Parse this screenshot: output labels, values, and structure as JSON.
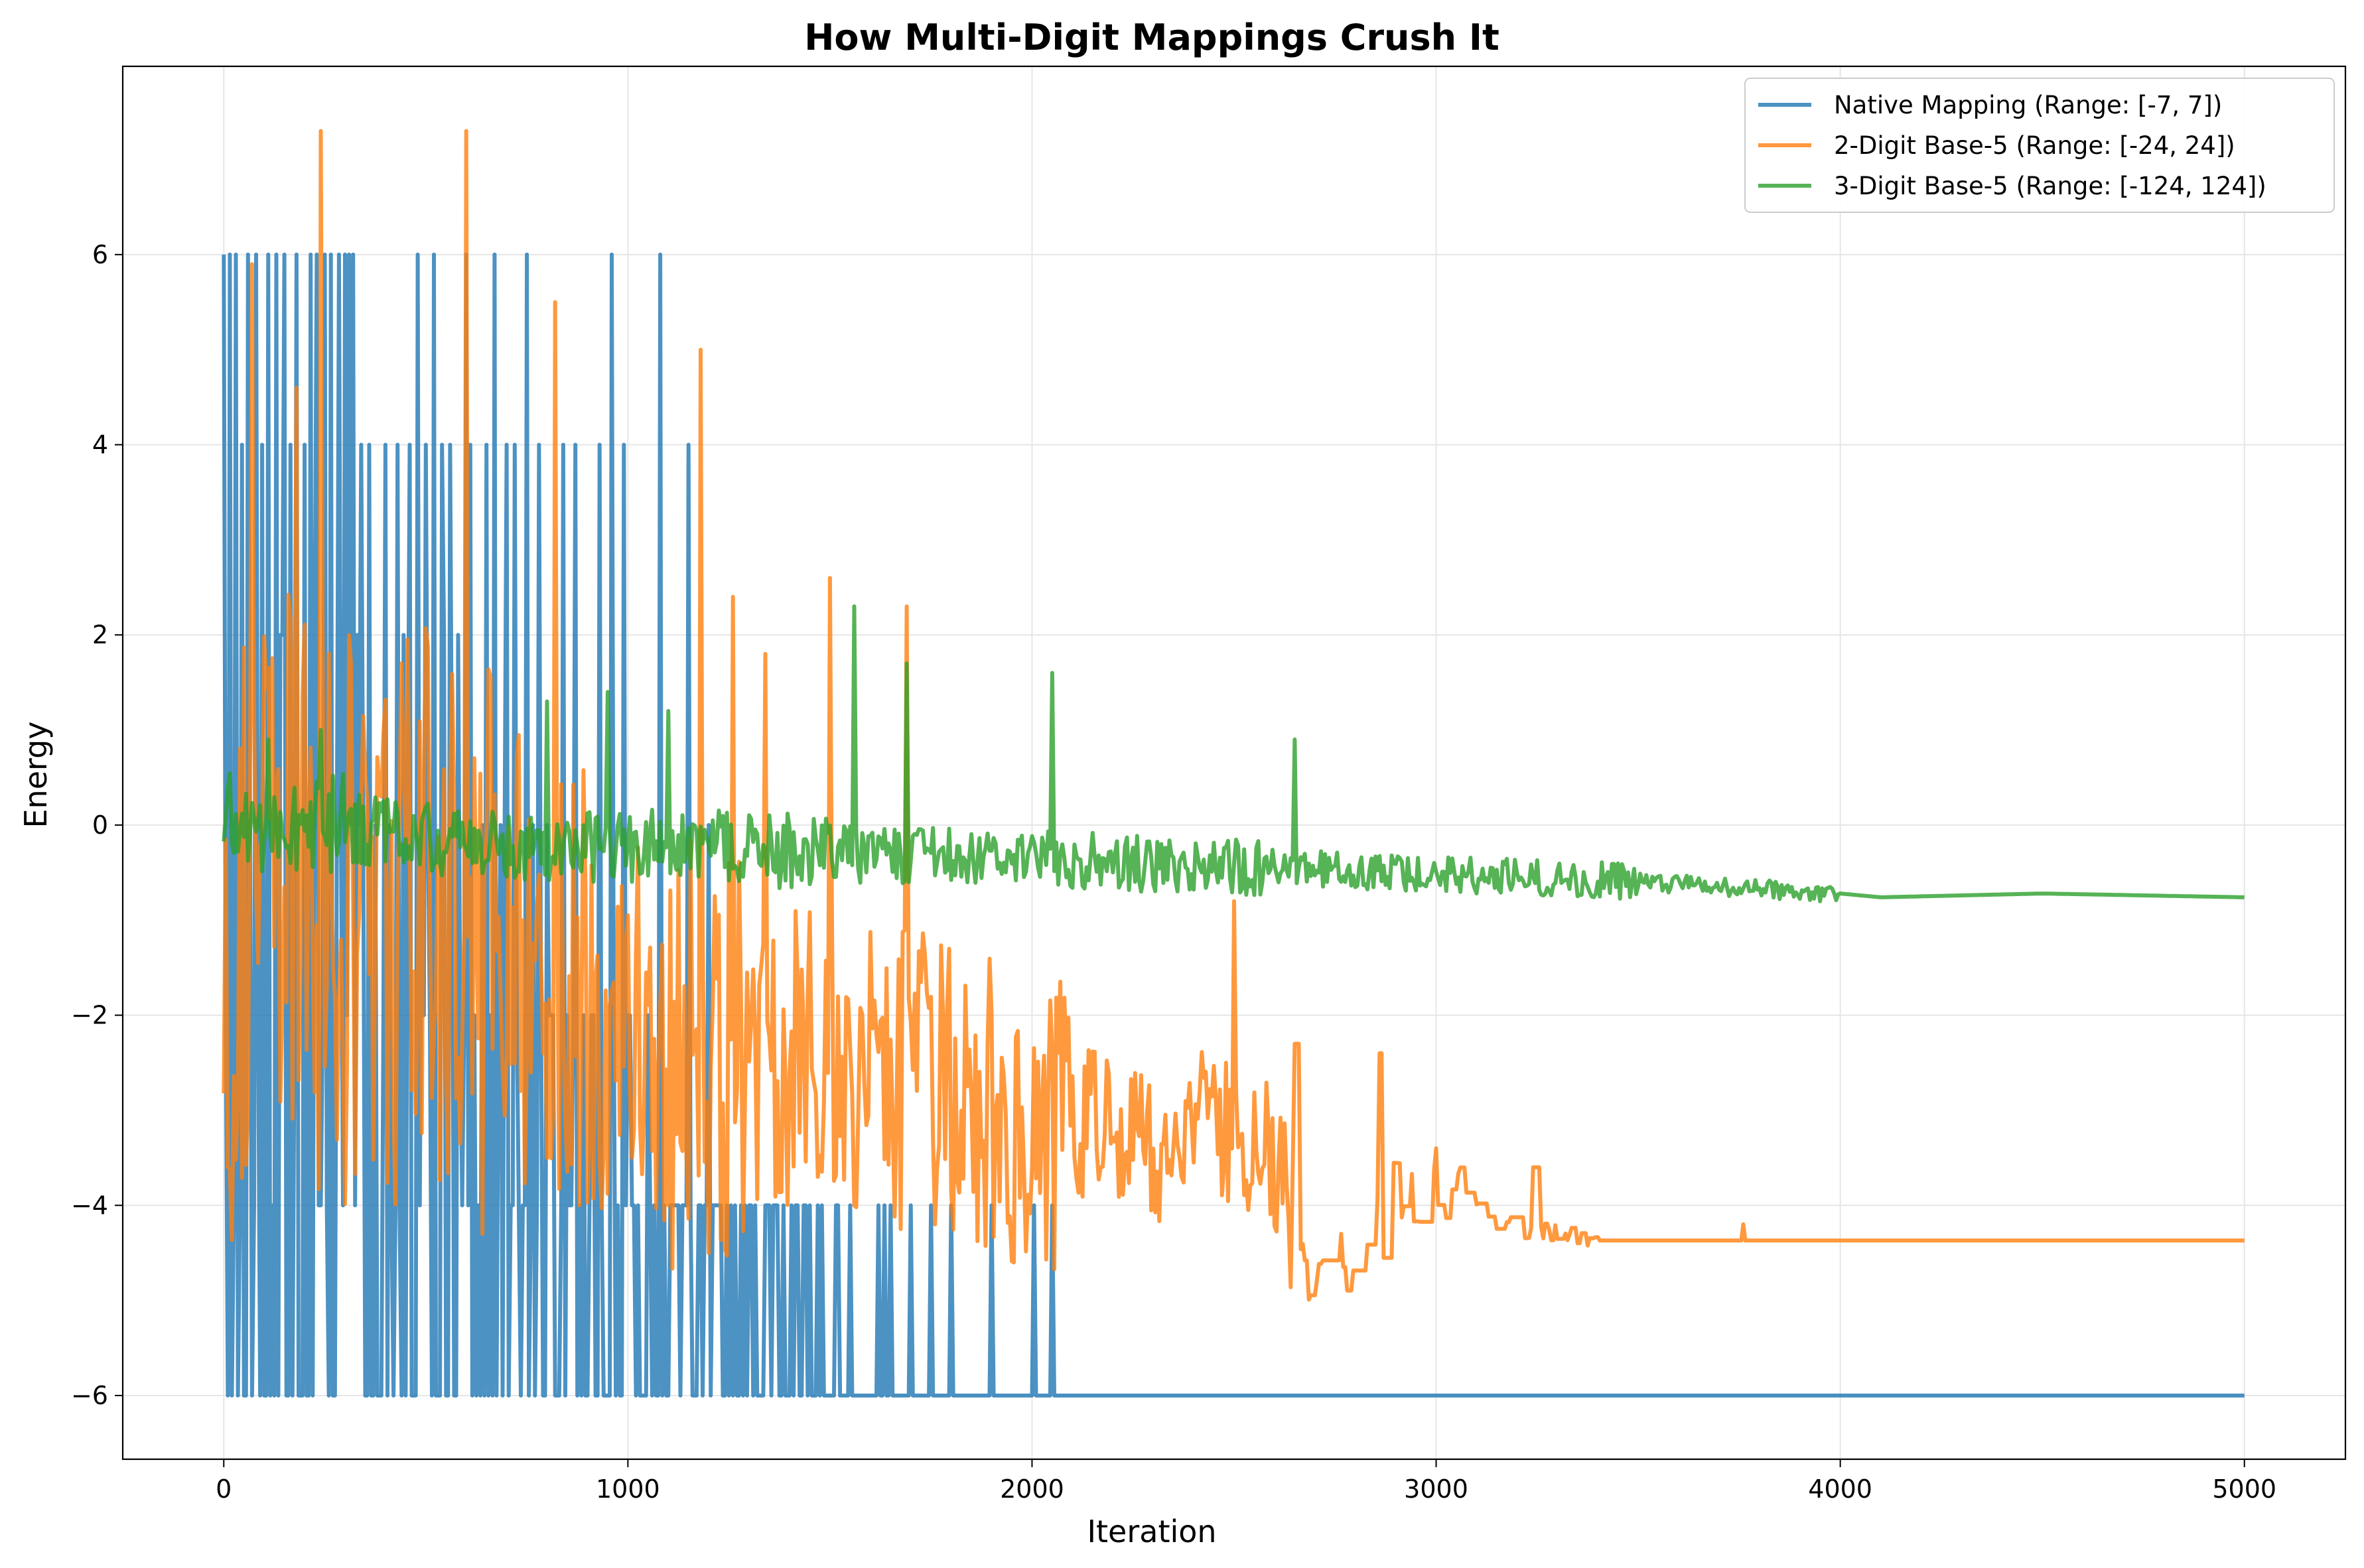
{
  "chart_data": {
    "type": "line",
    "title": "How Multi-Digit Mappings Crush It",
    "xlabel": "Iteration",
    "ylabel": "Energy",
    "xlim": [
      -250,
      5250
    ],
    "ylim": [
      -6.67,
      7.98
    ],
    "xticks": [
      0,
      1000,
      2000,
      3000,
      4000,
      5000
    ],
    "yticks": [
      -6,
      -4,
      -2,
      0,
      2,
      4,
      6
    ],
    "xtick_labels": [
      "0",
      "1000",
      "2000",
      "3000",
      "4000",
      "5000"
    ],
    "ytick_labels": [
      "−6",
      "−4",
      "−2",
      "0",
      "2",
      "4",
      "6"
    ],
    "grid": true,
    "legend_position": "top-right",
    "series": [
      {
        "name": "Native Mapping (Range: [-7, 7])",
        "color": "#1f77b4",
        "noise": "spike",
        "keyframes": [
          [
            0,
            -2
          ],
          [
            50,
            0
          ],
          [
            300,
            0
          ],
          [
            600,
            -1
          ],
          [
            900,
            -4
          ],
          [
            1200,
            -5
          ],
          [
            1450,
            -5.5
          ],
          [
            1650,
            -6
          ],
          [
            2050,
            -6
          ],
          [
            5000,
            -6
          ]
        ],
        "spikes": [
          [
            0,
            6
          ],
          [
            15,
            6
          ],
          [
            30,
            6
          ],
          [
            45,
            4
          ],
          [
            60,
            6
          ],
          [
            80,
            6
          ],
          [
            95,
            4
          ],
          [
            110,
            6
          ],
          [
            130,
            6
          ],
          [
            150,
            6
          ],
          [
            165,
            4
          ],
          [
            180,
            6
          ],
          [
            200,
            4
          ],
          [
            215,
            6
          ],
          [
            230,
            6
          ],
          [
            250,
            6
          ],
          [
            265,
            6
          ],
          [
            285,
            6
          ],
          [
            300,
            6
          ],
          [
            310,
            6
          ],
          [
            320,
            6
          ],
          [
            340,
            4
          ],
          [
            360,
            4
          ],
          [
            400,
            4
          ],
          [
            430,
            4
          ],
          [
            460,
            4
          ],
          [
            480,
            6
          ],
          [
            500,
            4
          ],
          [
            520,
            6
          ],
          [
            540,
            4
          ],
          [
            560,
            4
          ],
          [
            600,
            6
          ],
          [
            610,
            4
          ],
          [
            650,
            4
          ],
          [
            670,
            6
          ],
          [
            700,
            4
          ],
          [
            720,
            4
          ],
          [
            750,
            6
          ],
          [
            780,
            4
          ],
          [
            840,
            4
          ],
          [
            870,
            4
          ],
          [
            930,
            4
          ],
          [
            960,
            6
          ],
          [
            990,
            4
          ],
          [
            1080,
            6
          ],
          [
            1150,
            4
          ],
          [
            1200,
            0
          ],
          [
            1300,
            -4
          ],
          [
            1370,
            -4
          ],
          [
            1420,
            -4
          ],
          [
            1480,
            -4
          ],
          [
            1550,
            -4
          ],
          [
            1620,
            -4
          ],
          [
            1700,
            -4
          ],
          [
            1800,
            -4
          ],
          [
            1900,
            -4
          ],
          [
            2050,
            -4
          ]
        ]
      },
      {
        "name": "2-Digit Base-5 (Range: [-24, 24])",
        "color": "#ff7f0e",
        "noise": "jagged",
        "keyframes": [
          [
            0,
            -1.5
          ],
          [
            100,
            -0.5
          ],
          [
            300,
            -1
          ],
          [
            600,
            -1
          ],
          [
            900,
            -1.8
          ],
          [
            1200,
            -2.5
          ],
          [
            1500,
            -2.5
          ],
          [
            1800,
            -2.8
          ],
          [
            2100,
            -3.2
          ],
          [
            2400,
            -3.3
          ],
          [
            2500,
            -3.2
          ],
          [
            2600,
            -3.6
          ],
          [
            2700,
            -4.7
          ],
          [
            2900,
            -4
          ],
          [
            3000,
            -3.8
          ],
          [
            3150,
            -4.2
          ],
          [
            3400,
            -4.37
          ],
          [
            5000,
            -4.37
          ]
        ],
        "peaks": [
          [
            240,
            7.3
          ],
          [
            600,
            7.3
          ],
          [
            70,
            5.9
          ],
          [
            180,
            4.6
          ],
          [
            820,
            5.5
          ],
          [
            1180,
            5.0
          ],
          [
            1260,
            2.4
          ],
          [
            1340,
            1.8
          ],
          [
            1500,
            2.6
          ],
          [
            1690,
            2.3
          ],
          [
            2500,
            -0.8
          ],
          [
            2650,
            -2.3
          ],
          [
            2860,
            -2.4
          ],
          [
            3000,
            -3.4
          ],
          [
            3240,
            -3.6
          ],
          [
            3760,
            -4.2
          ],
          [
            640,
            -4.3
          ],
          [
            880,
            -4.0
          ],
          [
            1560,
            -4.0
          ],
          [
            1760,
            -4.2
          ]
        ]
      },
      {
        "name": "3-Digit Base-5 (Range: [-124, 124])",
        "color": "#2ca02c",
        "noise": "jagged",
        "keyframes": [
          [
            0,
            0
          ],
          [
            300,
            0
          ],
          [
            600,
            -0.2
          ],
          [
            1000,
            -0.2
          ],
          [
            1500,
            -0.3
          ],
          [
            2000,
            -0.35
          ],
          [
            2500,
            -0.45
          ],
          [
            3000,
            -0.5
          ],
          [
            3500,
            -0.6
          ],
          [
            4000,
            -0.72
          ],
          [
            4100,
            -0.76
          ],
          [
            4500,
            -0.72
          ],
          [
            5000,
            -0.76
          ]
        ],
        "peaks": [
          [
            110,
            0.9
          ],
          [
            240,
            1.0
          ],
          [
            800,
            1.3
          ],
          [
            950,
            1.4
          ],
          [
            1100,
            1.2
          ],
          [
            1560,
            2.3
          ],
          [
            1690,
            1.7
          ],
          [
            2050,
            1.6
          ],
          [
            2650,
            0.9
          ]
        ]
      }
    ]
  }
}
